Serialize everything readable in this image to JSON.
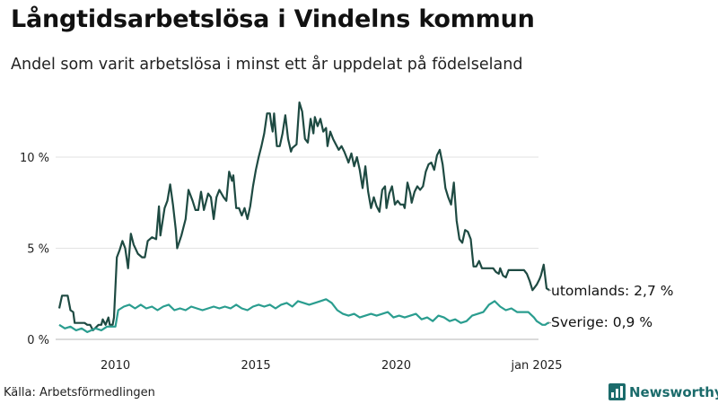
{
  "chart_data": {
    "type": "line",
    "title": "Långtidsarbetslösa i Vindelns kommun",
    "subtitle": "Andel som varit arbetslösa i minst ett år uppdelat på födelseland",
    "source": "Källa: Arbetsförmedlingen",
    "brand": "Newsworthy",
    "y_ticks": [
      {
        "value": 0,
        "label": "0 %"
      },
      {
        "value": 5,
        "label": "5 %"
      },
      {
        "value": 10,
        "label": "10 %"
      }
    ],
    "x_ticks": [
      {
        "value": 2010.0,
        "label": "2010"
      },
      {
        "value": 2015.0,
        "label": "2015"
      },
      {
        "value": 2020.0,
        "label": "2020"
      },
      {
        "value": 2025.0,
        "label": "jan 2025"
      }
    ],
    "ylim": [
      0,
      13.5
    ],
    "xlim": [
      2008.0,
      2025.0
    ],
    "grid": true,
    "series": [
      {
        "name": "utomlands",
        "end_label": "utomlands: 2,7 %",
        "color": "#1e4a42",
        "points": [
          [
            2008.0,
            1.7
          ],
          [
            2008.1,
            2.4
          ],
          [
            2008.3,
            2.4
          ],
          [
            2008.4,
            1.6
          ],
          [
            2008.5,
            1.5
          ],
          [
            2008.55,
            0.9
          ],
          [
            2008.7,
            0.9
          ],
          [
            2008.9,
            0.9
          ],
          [
            2009.0,
            0.8
          ],
          [
            2009.1,
            0.8
          ],
          [
            2009.2,
            0.5
          ],
          [
            2009.4,
            0.8
          ],
          [
            2009.5,
            0.8
          ],
          [
            2009.55,
            1.1
          ],
          [
            2009.65,
            0.8
          ],
          [
            2009.75,
            1.2
          ],
          [
            2009.8,
            0.8
          ],
          [
            2009.9,
            0.8
          ],
          [
            2009.95,
            1.2
          ],
          [
            2010.05,
            4.5
          ],
          [
            2010.15,
            4.9
          ],
          [
            2010.25,
            5.4
          ],
          [
            2010.35,
            5.0
          ],
          [
            2010.45,
            3.9
          ],
          [
            2010.55,
            5.8
          ],
          [
            2010.65,
            5.2
          ],
          [
            2010.8,
            4.7
          ],
          [
            2010.95,
            4.5
          ],
          [
            2011.05,
            4.5
          ],
          [
            2011.15,
            5.4
          ],
          [
            2011.3,
            5.6
          ],
          [
            2011.45,
            5.5
          ],
          [
            2011.55,
            7.3
          ],
          [
            2011.6,
            5.7
          ],
          [
            2011.75,
            7.2
          ],
          [
            2011.85,
            7.6
          ],
          [
            2011.95,
            8.5
          ],
          [
            2012.05,
            7.4
          ],
          [
            2012.15,
            6.0
          ],
          [
            2012.2,
            5.0
          ],
          [
            2012.35,
            5.7
          ],
          [
            2012.5,
            6.6
          ],
          [
            2012.6,
            8.2
          ],
          [
            2012.75,
            7.6
          ],
          [
            2012.85,
            7.1
          ],
          [
            2012.95,
            7.1
          ],
          [
            2013.05,
            8.1
          ],
          [
            2013.15,
            7.1
          ],
          [
            2013.3,
            8.0
          ],
          [
            2013.4,
            7.8
          ],
          [
            2013.5,
            6.6
          ],
          [
            2013.6,
            7.8
          ],
          [
            2013.7,
            8.2
          ],
          [
            2013.85,
            7.8
          ],
          [
            2013.95,
            7.6
          ],
          [
            2014.05,
            9.2
          ],
          [
            2014.15,
            8.7
          ],
          [
            2014.2,
            9.0
          ],
          [
            2014.3,
            7.2
          ],
          [
            2014.4,
            7.2
          ],
          [
            2014.5,
            6.8
          ],
          [
            2014.6,
            7.2
          ],
          [
            2014.7,
            6.6
          ],
          [
            2014.8,
            7.3
          ],
          [
            2014.9,
            8.4
          ],
          [
            2015.0,
            9.3
          ],
          [
            2015.1,
            10.0
          ],
          [
            2015.2,
            10.6
          ],
          [
            2015.3,
            11.3
          ],
          [
            2015.4,
            12.4
          ],
          [
            2015.5,
            12.4
          ],
          [
            2015.55,
            11.8
          ],
          [
            2015.6,
            11.4
          ],
          [
            2015.65,
            12.4
          ],
          [
            2015.75,
            10.6
          ],
          [
            2015.85,
            10.6
          ],
          [
            2015.95,
            11.3
          ],
          [
            2016.05,
            12.3
          ],
          [
            2016.15,
            11.0
          ],
          [
            2016.25,
            10.3
          ],
          [
            2016.3,
            10.5
          ],
          [
            2016.45,
            10.7
          ],
          [
            2016.55,
            13.0
          ],
          [
            2016.65,
            12.5
          ],
          [
            2016.75,
            11.0
          ],
          [
            2016.85,
            10.8
          ],
          [
            2016.95,
            12.1
          ],
          [
            2017.05,
            11.3
          ],
          [
            2017.1,
            12.2
          ],
          [
            2017.2,
            11.7
          ],
          [
            2017.3,
            12.1
          ],
          [
            2017.4,
            11.4
          ],
          [
            2017.5,
            11.6
          ],
          [
            2017.55,
            10.6
          ],
          [
            2017.65,
            11.4
          ],
          [
            2017.75,
            11.0
          ],
          [
            2017.85,
            10.7
          ],
          [
            2017.95,
            10.4
          ],
          [
            2018.05,
            10.6
          ],
          [
            2018.15,
            10.3
          ],
          [
            2018.25,
            9.9
          ],
          [
            2018.3,
            9.7
          ],
          [
            2018.4,
            10.2
          ],
          [
            2018.5,
            9.5
          ],
          [
            2018.6,
            10.0
          ],
          [
            2018.7,
            9.3
          ],
          [
            2018.8,
            8.3
          ],
          [
            2018.9,
            9.5
          ],
          [
            2019.0,
            8.1
          ],
          [
            2019.1,
            7.2
          ],
          [
            2019.2,
            7.8
          ],
          [
            2019.3,
            7.3
          ],
          [
            2019.4,
            7.0
          ],
          [
            2019.5,
            8.2
          ],
          [
            2019.6,
            8.4
          ],
          [
            2019.65,
            7.2
          ],
          [
            2019.75,
            8.0
          ],
          [
            2019.85,
            8.4
          ],
          [
            2019.95,
            7.4
          ],
          [
            2020.05,
            7.6
          ],
          [
            2020.15,
            7.4
          ],
          [
            2020.25,
            7.4
          ],
          [
            2020.3,
            7.2
          ],
          [
            2020.4,
            8.6
          ],
          [
            2020.5,
            8.0
          ],
          [
            2020.55,
            7.5
          ],
          [
            2020.65,
            8.1
          ],
          [
            2020.75,
            8.4
          ],
          [
            2020.85,
            8.2
          ],
          [
            2020.95,
            8.4
          ],
          [
            2021.05,
            9.2
          ],
          [
            2021.15,
            9.6
          ],
          [
            2021.25,
            9.7
          ],
          [
            2021.35,
            9.3
          ],
          [
            2021.45,
            10.1
          ],
          [
            2021.55,
            10.4
          ],
          [
            2021.65,
            9.6
          ],
          [
            2021.75,
            8.3
          ],
          [
            2021.85,
            7.8
          ],
          [
            2021.95,
            7.4
          ],
          [
            2022.05,
            8.6
          ],
          [
            2022.15,
            6.5
          ],
          [
            2022.25,
            5.5
          ],
          [
            2022.35,
            5.3
          ],
          [
            2022.45,
            6.0
          ],
          [
            2022.55,
            5.9
          ],
          [
            2022.65,
            5.5
          ],
          [
            2022.75,
            4.0
          ],
          [
            2022.85,
            4.0
          ],
          [
            2022.95,
            4.3
          ],
          [
            2023.05,
            3.9
          ],
          [
            2023.25,
            3.9
          ],
          [
            2023.45,
            3.9
          ],
          [
            2023.55,
            3.7
          ],
          [
            2023.65,
            3.6
          ],
          [
            2023.7,
            3.9
          ],
          [
            2023.8,
            3.5
          ],
          [
            2023.9,
            3.4
          ],
          [
            2024.0,
            3.8
          ],
          [
            2024.15,
            3.8
          ],
          [
            2024.3,
            3.8
          ],
          [
            2024.45,
            3.8
          ],
          [
            2024.55,
            3.8
          ],
          [
            2024.65,
            3.6
          ],
          [
            2024.75,
            3.2
          ],
          [
            2024.85,
            2.7
          ],
          [
            2024.9,
            2.8
          ],
          [
            2025.0,
            3.0
          ],
          [
            2025.1,
            3.3
          ],
          [
            2025.15,
            3.5
          ],
          [
            2025.25,
            4.1
          ],
          [
            2025.35,
            2.8
          ],
          [
            2025.45,
            2.7
          ]
        ]
      },
      {
        "name": "Sverige",
        "end_label": "Sverige: 0,9 %",
        "color": "#2a9d8f",
        "points": [
          [
            2008.0,
            0.8
          ],
          [
            2008.2,
            0.6
          ],
          [
            2008.4,
            0.7
          ],
          [
            2008.6,
            0.5
          ],
          [
            2008.8,
            0.6
          ],
          [
            2009.0,
            0.4
          ],
          [
            2009.3,
            0.6
          ],
          [
            2009.5,
            0.5
          ],
          [
            2009.7,
            0.7
          ],
          [
            2010.0,
            0.7
          ],
          [
            2010.1,
            1.6
          ],
          [
            2010.3,
            1.8
          ],
          [
            2010.5,
            1.9
          ],
          [
            2010.7,
            1.7
          ],
          [
            2010.9,
            1.9
          ],
          [
            2011.1,
            1.7
          ],
          [
            2011.3,
            1.8
          ],
          [
            2011.5,
            1.6
          ],
          [
            2011.7,
            1.8
          ],
          [
            2011.9,
            1.9
          ],
          [
            2012.1,
            1.6
          ],
          [
            2012.3,
            1.7
          ],
          [
            2012.5,
            1.6
          ],
          [
            2012.7,
            1.8
          ],
          [
            2012.9,
            1.7
          ],
          [
            2013.1,
            1.6
          ],
          [
            2013.3,
            1.7
          ],
          [
            2013.5,
            1.8
          ],
          [
            2013.7,
            1.7
          ],
          [
            2013.9,
            1.8
          ],
          [
            2014.1,
            1.7
          ],
          [
            2014.3,
            1.9
          ],
          [
            2014.5,
            1.7
          ],
          [
            2014.7,
            1.6
          ],
          [
            2014.9,
            1.8
          ],
          [
            2015.1,
            1.9
          ],
          [
            2015.3,
            1.8
          ],
          [
            2015.5,
            1.9
          ],
          [
            2015.7,
            1.7
          ],
          [
            2015.9,
            1.9
          ],
          [
            2016.1,
            2.0
          ],
          [
            2016.3,
            1.8
          ],
          [
            2016.5,
            2.1
          ],
          [
            2016.7,
            2.0
          ],
          [
            2016.9,
            1.9
          ],
          [
            2017.1,
            2.0
          ],
          [
            2017.3,
            2.1
          ],
          [
            2017.5,
            2.2
          ],
          [
            2017.7,
            2.0
          ],
          [
            2017.9,
            1.6
          ],
          [
            2018.1,
            1.4
          ],
          [
            2018.3,
            1.3
          ],
          [
            2018.5,
            1.4
          ],
          [
            2018.7,
            1.2
          ],
          [
            2018.9,
            1.3
          ],
          [
            2019.1,
            1.4
          ],
          [
            2019.3,
            1.3
          ],
          [
            2019.5,
            1.4
          ],
          [
            2019.7,
            1.5
          ],
          [
            2019.9,
            1.2
          ],
          [
            2020.1,
            1.3
          ],
          [
            2020.3,
            1.2
          ],
          [
            2020.5,
            1.3
          ],
          [
            2020.7,
            1.4
          ],
          [
            2020.9,
            1.1
          ],
          [
            2021.1,
            1.2
          ],
          [
            2021.3,
            1.0
          ],
          [
            2021.5,
            1.3
          ],
          [
            2021.7,
            1.2
          ],
          [
            2021.9,
            1.0
          ],
          [
            2022.1,
            1.1
          ],
          [
            2022.3,
            0.9
          ],
          [
            2022.5,
            1.0
          ],
          [
            2022.7,
            1.3
          ],
          [
            2022.9,
            1.4
          ],
          [
            2023.1,
            1.5
          ],
          [
            2023.3,
            1.9
          ],
          [
            2023.5,
            2.1
          ],
          [
            2023.7,
            1.8
          ],
          [
            2023.9,
            1.6
          ],
          [
            2024.1,
            1.7
          ],
          [
            2024.3,
            1.5
          ],
          [
            2024.5,
            1.5
          ],
          [
            2024.7,
            1.5
          ],
          [
            2024.9,
            1.2
          ],
          [
            2025.0,
            1.0
          ],
          [
            2025.1,
            0.9
          ],
          [
            2025.2,
            0.8
          ],
          [
            2025.3,
            0.8
          ],
          [
            2025.4,
            0.9
          ],
          [
            2025.45,
            0.9
          ]
        ]
      }
    ]
  }
}
